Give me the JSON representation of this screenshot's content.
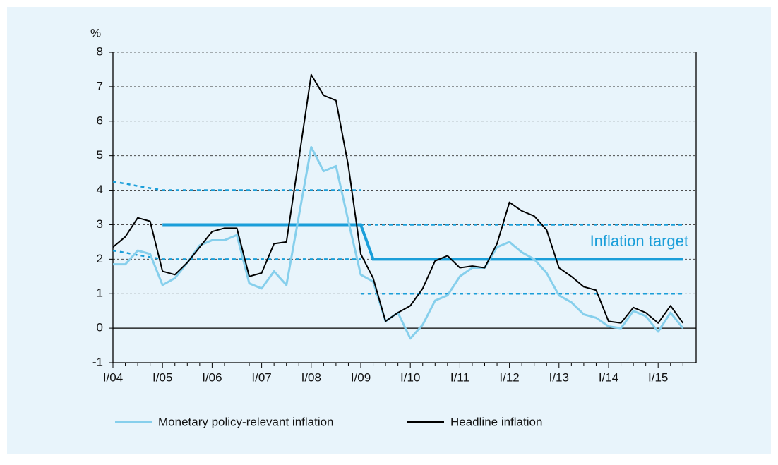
{
  "chart_data": {
    "type": "line",
    "y_label": "%",
    "categories": [
      "I/04",
      null,
      null,
      null,
      "I/05",
      null,
      null,
      null,
      "I/06",
      null,
      null,
      null,
      "I/07",
      null,
      null,
      null,
      "I/08",
      null,
      null,
      null,
      "I/09",
      null,
      null,
      null,
      "I/10",
      null,
      null,
      null,
      "I/11",
      null,
      null,
      null,
      "I/12",
      null,
      null,
      null,
      "I/13",
      null,
      null,
      null,
      "I/14",
      null,
      null,
      null,
      "I/15",
      null,
      null
    ],
    "series": [
      {
        "name": "Monetary policy-relevant inflation",
        "color": "#86cfec",
        "width": 3,
        "values": [
          1.85,
          1.85,
          2.25,
          2.15,
          1.25,
          1.45,
          1.9,
          2.4,
          2.55,
          2.55,
          2.7,
          1.3,
          1.15,
          1.65,
          1.25,
          3.25,
          5.25,
          4.55,
          4.7,
          3.1,
          1.55,
          1.35,
          0.2,
          0.45,
          -0.3,
          0.1,
          0.8,
          0.95,
          1.5,
          1.75,
          1.75,
          2.35,
          2.5,
          2.2,
          2.0,
          1.6,
          0.95,
          0.75,
          0.4,
          0.3,
          0.05,
          0.0,
          0.5,
          0.35,
          -0.1,
          0.45,
          0.0
        ]
      },
      {
        "name": "Headline inflation",
        "color": "#000000",
        "width": 2,
        "values": [
          2.35,
          2.65,
          3.2,
          3.1,
          1.65,
          1.55,
          1.9,
          2.35,
          2.8,
          2.9,
          2.9,
          1.5,
          1.6,
          2.45,
          2.5,
          4.9,
          7.35,
          6.75,
          6.6,
          4.7,
          2.15,
          1.45,
          0.2,
          0.45,
          0.65,
          1.15,
          1.95,
          2.1,
          1.75,
          1.8,
          1.75,
          2.45,
          3.65,
          3.4,
          3.25,
          2.85,
          1.75,
          1.5,
          1.2,
          1.1,
          0.2,
          0.15,
          0.6,
          0.45,
          0.15,
          0.65,
          0.15
        ]
      }
    ],
    "target": {
      "label": "Inflation target",
      "color": "#1a9ed9",
      "values": [
        null,
        null,
        null,
        null,
        3,
        3,
        3,
        3,
        3,
        3,
        3,
        3,
        3,
        3,
        3,
        3,
        3,
        3,
        3,
        3,
        3,
        2,
        2,
        2,
        2,
        2,
        2,
        2,
        2,
        2,
        2,
        2,
        2,
        2,
        2,
        2,
        2,
        2,
        2,
        2,
        2,
        2,
        2,
        2,
        2,
        2,
        2
      ]
    },
    "tolerance_bands": [
      {
        "values": [
          4.25,
          4.19,
          4.12,
          4.06,
          4,
          4,
          4,
          4,
          4,
          4,
          4,
          4,
          4,
          4,
          4,
          4,
          4,
          4,
          4,
          4,
          4,
          null,
          null,
          null,
          null,
          null,
          null,
          null,
          null,
          null,
          null,
          null,
          null,
          null,
          null,
          null,
          null,
          null,
          null,
          null,
          null,
          null,
          null,
          null,
          null,
          null,
          null
        ]
      },
      {
        "values": [
          2.25,
          2.19,
          2.12,
          2.06,
          2,
          2,
          2,
          2,
          2,
          2,
          2,
          2,
          2,
          2,
          2,
          2,
          2,
          2,
          2,
          2,
          2,
          null,
          null,
          null,
          null,
          null,
          null,
          null,
          null,
          null,
          null,
          null,
          null,
          null,
          null,
          null,
          null,
          null,
          null,
          null,
          null,
          null,
          null,
          null,
          null,
          null,
          null
        ]
      },
      {
        "values": [
          null,
          null,
          null,
          null,
          null,
          null,
          null,
          null,
          null,
          null,
          null,
          null,
          null,
          null,
          null,
          null,
          null,
          null,
          null,
          null,
          3,
          3,
          3,
          3,
          3,
          3,
          3,
          3,
          3,
          3,
          3,
          3,
          3,
          3,
          3,
          3,
          3,
          3,
          3,
          3,
          3,
          3,
          3,
          3,
          3,
          3,
          3
        ]
      },
      {
        "values": [
          null,
          null,
          null,
          null,
          null,
          null,
          null,
          null,
          null,
          null,
          null,
          null,
          null,
          null,
          null,
          null,
          null,
          null,
          null,
          null,
          1,
          1,
          1,
          1,
          1,
          1,
          1,
          1,
          1,
          1,
          1,
          1,
          1,
          1,
          1,
          1,
          1,
          1,
          1,
          1,
          1,
          1,
          1,
          1,
          1,
          1,
          1
        ]
      }
    ],
    "ylim": [
      -1,
      8
    ],
    "yticks": [
      -1,
      0,
      1,
      2,
      3,
      4,
      5,
      6,
      7,
      8
    ],
    "grid": true,
    "legend": "bottom"
  }
}
